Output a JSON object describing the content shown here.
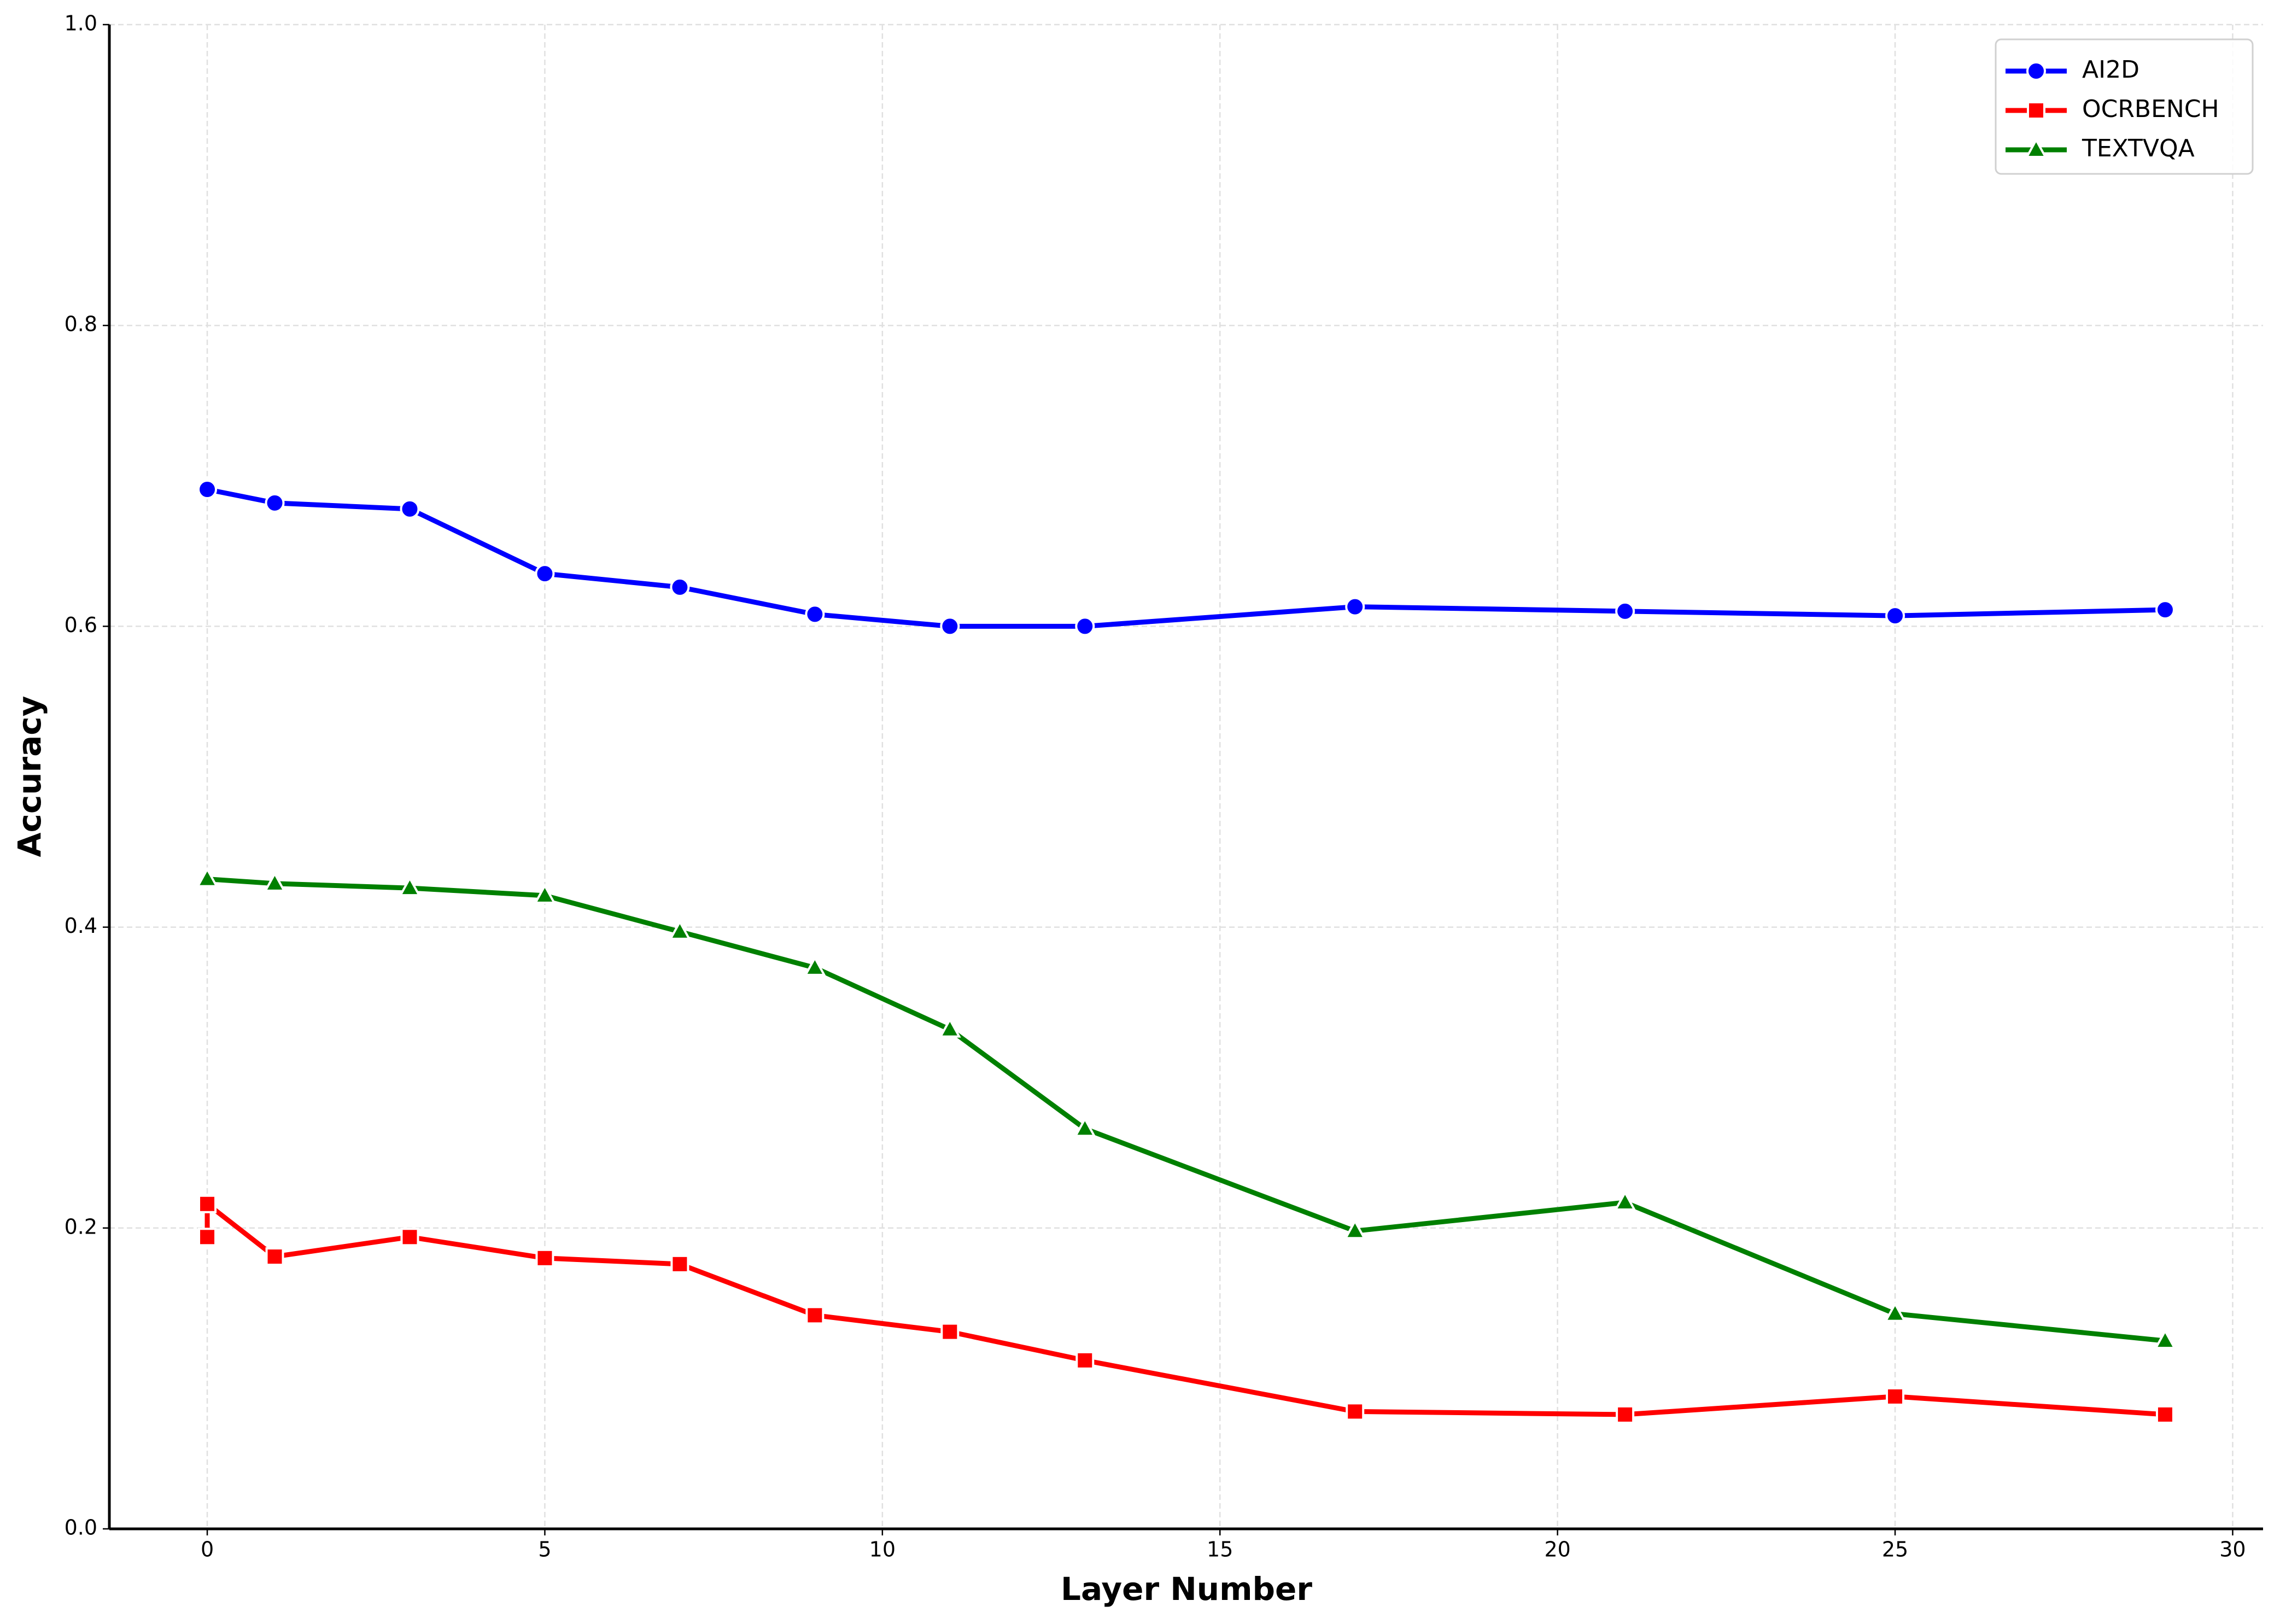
{
  "chart_data": {
    "type": "line",
    "xlabel": "Layer Number",
    "ylabel": "Accuracy",
    "xlim": [
      -1.45,
      30.45
    ],
    "xticks": [
      0,
      5,
      10,
      15,
      20,
      25,
      30
    ],
    "ylim": [
      0,
      1
    ],
    "yticks": [
      {
        "value": 0,
        "label": "0.0"
      },
      0.2,
      0.4,
      0.6,
      0.8,
      {
        "value": 1,
        "label": "1.0"
      }
    ],
    "grid": true,
    "legend": "upper right",
    "series": [
      {
        "name": "AI2D",
        "color": "#0000ff",
        "marker": "circle",
        "x": [
          0,
          1,
          3,
          5,
          7,
          9,
          11,
          13,
          17,
          21,
          25,
          29
        ],
        "values": [
          0.691,
          0.682,
          0.678,
          0.635,
          0.626,
          0.608,
          0.6,
          0.6,
          0.613,
          0.61,
          0.607,
          0.611
        ]
      },
      {
        "name": "OCRBENCH",
        "color": "#ff0000",
        "marker": "square",
        "x": [
          0,
          0,
          1,
          3,
          5,
          7,
          9,
          11,
          13,
          17,
          21,
          25,
          29
        ],
        "values": [
          0.194,
          0.216,
          0.181,
          0.194,
          0.18,
          0.176,
          0.142,
          0.131,
          0.112,
          0.078,
          0.076,
          0.088,
          0.076
        ]
      },
      {
        "name": "TEXTVQA",
        "color": "#008000",
        "marker": "triangle",
        "x": [
          0,
          1,
          3,
          5,
          7,
          9,
          11,
          13,
          17,
          21,
          25,
          29
        ],
        "values": [
          0.432,
          0.429,
          0.426,
          0.421,
          0.397,
          0.373,
          0.332,
          0.266,
          0.198,
          0.217,
          0.143,
          0.125
        ]
      }
    ]
  }
}
